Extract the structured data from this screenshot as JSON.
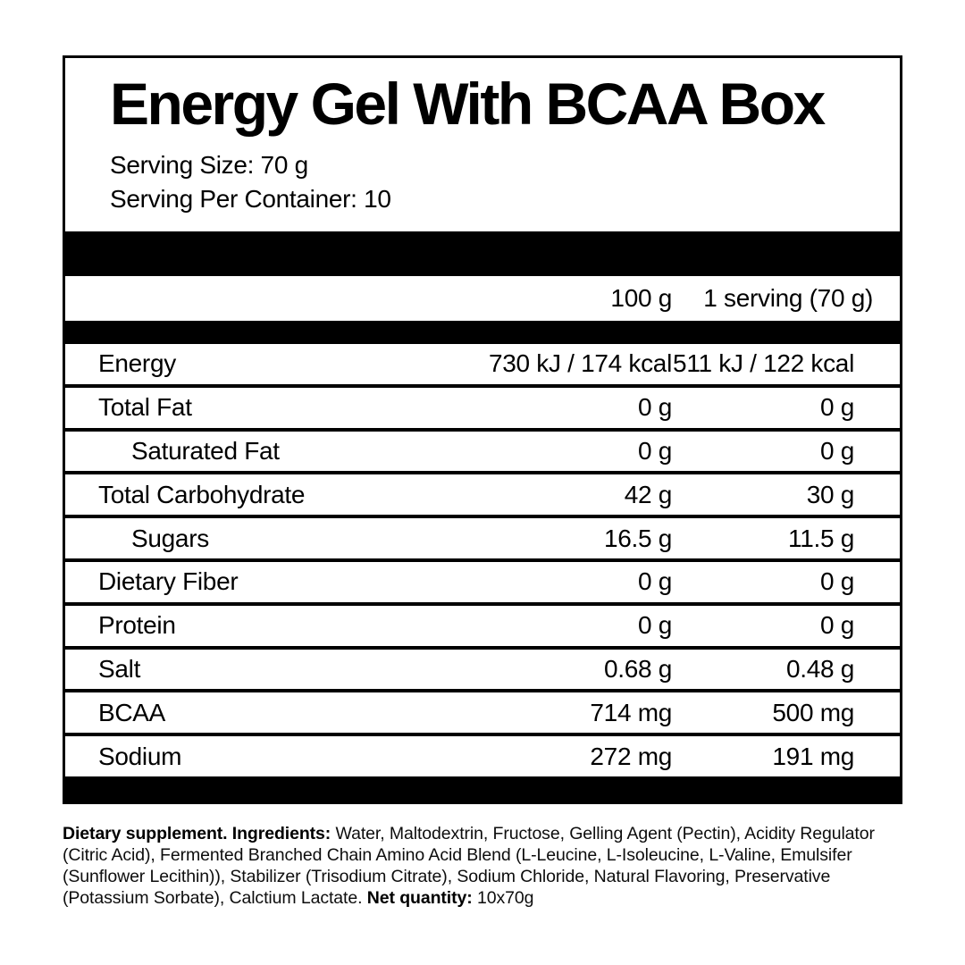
{
  "panel": {
    "title": "Energy Gel With BCAA Box",
    "serving_size": "Serving Size: 70 g",
    "serving_per_container": "Serving Per Container: 10",
    "columns": {
      "per_100g": "100 g",
      "per_serving": "1 serving (70 g)"
    },
    "rows": [
      {
        "label": "Energy",
        "per_100g": "730 kJ / 174 kcal",
        "per_serving": "511 kJ / 122 kcal"
      },
      {
        "label": "Total Fat",
        "per_100g": "0 g",
        "per_serving": "0 g"
      },
      {
        "label": "Saturated Fat",
        "per_100g": "0 g",
        "per_serving": "0 g"
      },
      {
        "label": "Total Carbohydrate",
        "per_100g": "42 g",
        "per_serving": "30 g"
      },
      {
        "label": "Sugars",
        "per_100g": "16.5 g",
        "per_serving": "11.5 g"
      },
      {
        "label": "Dietary Fiber",
        "per_100g": "0 g",
        "per_serving": "0 g"
      },
      {
        "label": "Protein",
        "per_100g": "0 g",
        "per_serving": "0 g"
      },
      {
        "label": "Salt",
        "per_100g": "0.68 g",
        "per_serving": "0.48 g"
      },
      {
        "label": "BCAA",
        "per_100g": "714 mg",
        "per_serving": "500 mg"
      },
      {
        "label": "Sodium",
        "per_100g": "272 mg",
        "per_serving": "191 mg"
      }
    ]
  },
  "footer": {
    "lead_bold": "Dietary supplement. Ingredients:",
    "ingredients_text": "Water, Maltodextrin, Fructose, Gelling Agent (Pectin), Acidity Regulator (Citric Acid), Fermented Branched Chain Amino Acid Blend (L-Leucine, L-Isoleucine, L-Valine, Emulsifer (Sunflower Lecithin)), Stabilizer (Trisodium Citrate), Sodium Chloride, Natural Flavoring, Preservative (Potassium Sorbate), Calctium Lactate.",
    "net_quantity_bold": "Net quantity:",
    "net_quantity_value": "10x70g"
  },
  "colors": {
    "ink": "#000000",
    "background": "#ffffff"
  }
}
